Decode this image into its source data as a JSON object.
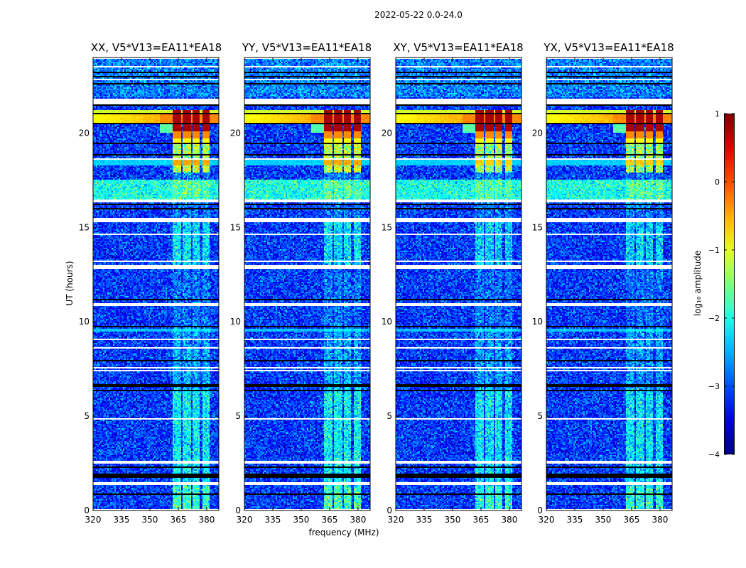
{
  "chart_data": {
    "type": "heatmap",
    "title": "2022-05-22 0.0-24.0",
    "xlabel": "frequency (MHz)",
    "ylabel": "UT (hours)",
    "xlim": [
      320,
      386.4
    ],
    "ylim": [
      0,
      24
    ],
    "xticks": [
      320,
      335,
      350,
      365,
      380
    ],
    "yticks": [
      0,
      5,
      10,
      15,
      20
    ],
    "panels": [
      {
        "title": "XX, V5*V13=EA11*EA18"
      },
      {
        "title": "YY, V5*V13=EA11*EA18"
      },
      {
        "title": "XY, V5*V13=EA11*EA18"
      },
      {
        "title": "YX, V5*V13=EA11*EA18"
      }
    ],
    "colorbar": {
      "label": "log₁₀ amplitude",
      "colormap": "jet",
      "range": [
        -4,
        1
      ],
      "ticks": [
        -4,
        -3,
        -2,
        -1,
        0,
        1
      ],
      "tick_labels": [
        "−4",
        "−3",
        "−2",
        "−1",
        "0",
        "1"
      ]
    },
    "background_log_amplitude": -3.1,
    "rfi_channel_blocks_mhz": [
      [
        362,
        366.5
      ],
      [
        367.5,
        371.5
      ],
      [
        372.5,
        376.5
      ],
      [
        377.5,
        381.5
      ]
    ],
    "strong_rfi_interval_hours": [
      19.6,
      21.2
    ],
    "flagged_rows_white_hours": [
      [
        23.9,
        23.97
      ],
      [
        23.5,
        23.56
      ],
      [
        22.8,
        22.86
      ],
      [
        21.55,
        21.85
      ],
      [
        18.6,
        18.65
      ],
      [
        18.26,
        18.3
      ],
      [
        17.88,
        17.92
      ],
      [
        17.5,
        17.55
      ],
      [
        16.3,
        16.45
      ],
      [
        15.7,
        15.75
      ],
      [
        15.3,
        15.5
      ],
      [
        14.88,
        14.93
      ],
      [
        14.6,
        14.65
      ],
      [
        13.3,
        13.35
      ],
      [
        13.2,
        13.24
      ],
      [
        12.82,
        13.0
      ],
      [
        10.8,
        11.0
      ],
      [
        10.28,
        10.32
      ],
      [
        10.14,
        10.18
      ],
      [
        9.3,
        9.35
      ],
      [
        9.05,
        9.1
      ],
      [
        8.58,
        8.66
      ],
      [
        8.41,
        8.45
      ],
      [
        7.55,
        7.59
      ],
      [
        7.39,
        7.43
      ],
      [
        7.13,
        7.17
      ],
      [
        6.08,
        6.12
      ],
      [
        5.85,
        5.89
      ],
      [
        5.32,
        5.36
      ],
      [
        4.83,
        4.87
      ],
      [
        3.29,
        3.33
      ],
      [
        2.99,
        3.03
      ],
      [
        2.84,
        2.88
      ],
      [
        2.48,
        2.6
      ],
      [
        1.35,
        1.48
      ],
      [
        0.0,
        0.05
      ]
    ],
    "zero_rows_black_hours": [
      [
        23.2,
        23.25
      ],
      [
        22.95,
        23.0
      ],
      [
        22.6,
        22.65
      ],
      [
        21.45,
        21.5
      ],
      [
        20.98,
        21.03
      ],
      [
        20.48,
        20.52
      ],
      [
        19.9,
        19.93
      ],
      [
        19.4,
        19.45
      ],
      [
        18.78,
        18.85
      ],
      [
        17.72,
        17.76
      ],
      [
        16.18,
        16.22
      ],
      [
        15.98,
        16.02
      ],
      [
        15.25,
        15.28
      ],
      [
        14.52,
        14.55
      ],
      [
        11.15,
        11.2
      ],
      [
        9.7,
        9.75
      ],
      [
        9.45,
        9.48
      ],
      [
        7.92,
        7.96
      ],
      [
        6.98,
        7.02
      ],
      [
        6.58,
        6.68
      ],
      [
        6.33,
        6.4
      ],
      [
        5.02,
        5.06
      ],
      [
        4.19,
        4.23
      ],
      [
        2.28,
        2.32
      ],
      [
        1.76,
        1.98
      ],
      [
        0.85,
        0.89
      ],
      [
        0.13,
        0.17
      ]
    ]
  }
}
